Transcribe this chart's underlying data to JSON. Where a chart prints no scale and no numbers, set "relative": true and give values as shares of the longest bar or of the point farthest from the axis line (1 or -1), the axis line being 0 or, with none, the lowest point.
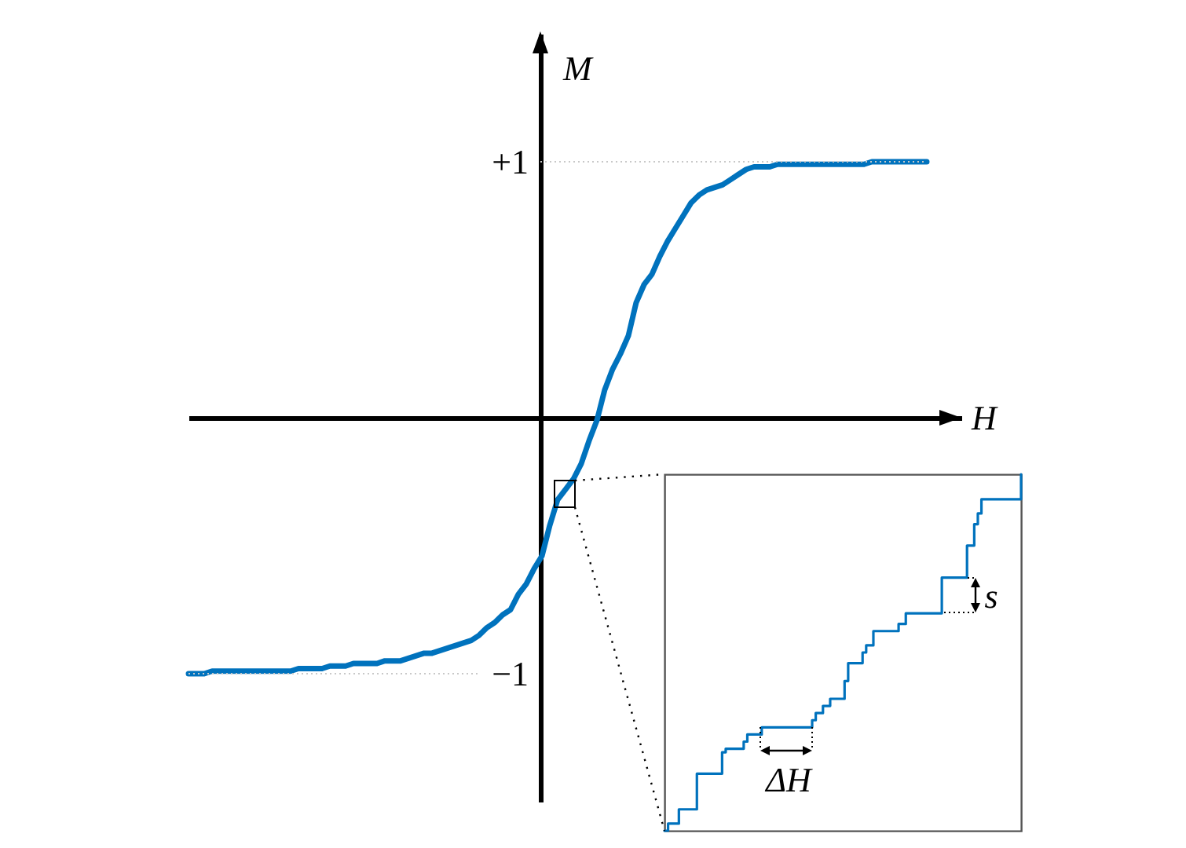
{
  "chart_data": [
    {
      "type": "line",
      "xlabel": "H",
      "ylabel": "M",
      "categories": [
        null,
        null,
        null,
        null,
        null,
        null,
        null,
        null,
        null,
        null,
        null,
        null,
        null,
        null,
        null,
        null,
        null,
        null,
        null,
        null,
        null,
        null,
        null,
        null,
        null,
        null,
        null,
        null,
        null,
        null,
        null,
        null,
        null,
        null,
        null,
        null,
        null,
        null,
        null,
        null,
        null,
        null,
        null,
        null,
        null,
        null,
        null,
        null,
        null,
        null,
        null,
        null,
        null,
        null,
        null,
        null,
        null,
        null,
        null,
        null,
        null,
        null,
        null,
        null,
        null,
        null,
        null,
        null,
        null,
        null,
        null,
        null,
        null,
        null,
        null,
        null,
        null,
        null,
        null,
        null,
        null,
        null,
        null,
        null,
        null,
        null,
        null,
        null,
        null,
        null,
        null,
        null,
        null,
        null,
        null
      ],
      "series": [
        {
          "color": "#0072bd",
          "values": [
            -1,
            -1,
            -1,
            -0.99,
            -0.99,
            -0.99,
            -0.99,
            -0.99,
            -0.99,
            -0.99,
            -0.99,
            -0.99,
            -0.99,
            -0.99,
            -0.98,
            -0.98,
            -0.98,
            -0.98,
            -0.97,
            -0.97,
            -0.97,
            -0.96,
            -0.96,
            -0.96,
            -0.96,
            -0.95,
            -0.95,
            -0.95,
            -0.94,
            -0.93,
            -0.92,
            -0.92,
            -0.91,
            -0.9,
            -0.89,
            -0.88,
            -0.87,
            -0.85,
            -0.82,
            -0.8,
            -0.77,
            -0.75,
            -0.69,
            -0.65,
            -0.59,
            -0.54,
            -0.42,
            -0.32,
            -0.28,
            -0.24,
            -0.18,
            -0.09,
            -0.01,
            0.11,
            0.19,
            0.25,
            0.32,
            0.45,
            0.52,
            0.56,
            0.63,
            0.69,
            0.74,
            0.79,
            0.84,
            0.87,
            0.89,
            0.9,
            0.91,
            0.93,
            0.95,
            0.97,
            0.98,
            0.98,
            0.98,
            0.99,
            0.99,
            0.99,
            0.99,
            0.99,
            0.99,
            0.99,
            0.99,
            0.99,
            0.99,
            0.99,
            0.99,
            1,
            1,
            1,
            1,
            1,
            1,
            1,
            1
          ]
        }
      ],
      "ylim": [
        -1.5,
        1.5
      ],
      "yticks": [
        {
          "value": 1,
          "label": "+1"
        },
        {
          "value": -1,
          "label": "−1"
        }
      ],
      "tick_labels": "y",
      "ref_lines": [
        {
          "axis": "y",
          "value": 1,
          "color": "#c8c8c8",
          "line_style": "dotted"
        },
        {
          "axis": "y",
          "value": -1,
          "color": "#c8c8c8",
          "line_style": "dotted"
        }
      ]
    },
    {
      "type": "step",
      "relative": true,
      "tick_labels": false,
      "categories": [
        null,
        null,
        null,
        null,
        null,
        null,
        null,
        null,
        null,
        null,
        null,
        null,
        null,
        null,
        null,
        null,
        null,
        null,
        null,
        null,
        null,
        null,
        null,
        null,
        null,
        null,
        null,
        null,
        null,
        null,
        null,
        null,
        null,
        null,
        null,
        null,
        null,
        null,
        null,
        null,
        null,
        null,
        null,
        null,
        null,
        null,
        null,
        null,
        null,
        null,
        null,
        null,
        null,
        null,
        null,
        null,
        null,
        null,
        null,
        null,
        null,
        null,
        null,
        null,
        null,
        null,
        null,
        null,
        null,
        null,
        null,
        null,
        null,
        null,
        null,
        null,
        null,
        null,
        null,
        null,
        null,
        null,
        null,
        null,
        null,
        null,
        null,
        null,
        null,
        null,
        null,
        null,
        null,
        null,
        null,
        null,
        null,
        null,
        null,
        null
      ],
      "series": [
        {
          "color": "#0072bd",
          "values": [
            0,
            0.02,
            0.02,
            0.02,
            0.06,
            0.06,
            0.06,
            0.06,
            0.06,
            0.16,
            0.16,
            0.16,
            0.16,
            0.16,
            0.16,
            0.16,
            0.22,
            0.23,
            0.23,
            0.23,
            0.23,
            0.23,
            0.25,
            0.27,
            0.27,
            0.27,
            0.27,
            0.29,
            0.29,
            0.29,
            0.29,
            0.29,
            0.29,
            0.29,
            0.29,
            0.29,
            0.29,
            0.29,
            0.29,
            0.29,
            0.29,
            0.31,
            0.33,
            0.33,
            0.35,
            0.35,
            0.37,
            0.37,
            0.37,
            0.37,
            0.42,
            0.47,
            0.47,
            0.47,
            0.47,
            0.5,
            0.52,
            0.52,
            0.56,
            0.56,
            0.56,
            0.56,
            0.56,
            0.56,
            0.56,
            0.58,
            0.58,
            0.61,
            0.61,
            0.61,
            0.61,
            0.61,
            0.61,
            0.61,
            0.61,
            0.61,
            0.61,
            0.71,
            0.71,
            0.71,
            0.71,
            0.71,
            0.71,
            0.71,
            0.8,
            0.8,
            0.86,
            0.89,
            0.93,
            0.93,
            0.93,
            0.93,
            0.93,
            0.93,
            0.93,
            0.93,
            0.93,
            0.93,
            0.93,
            1
          ]
        }
      ],
      "annotations": [
        "ΔH",
        "s"
      ]
    }
  ]
}
